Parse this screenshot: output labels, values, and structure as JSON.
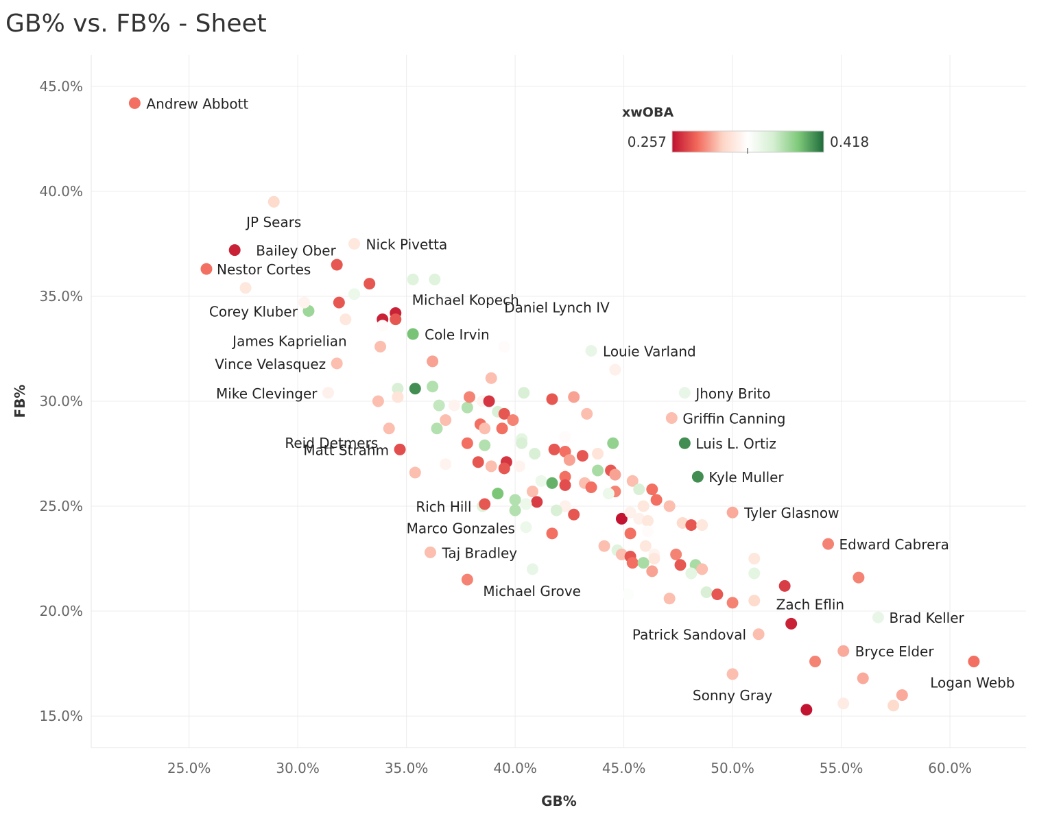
{
  "page": {
    "title": "GB% vs. FB% - Sheet"
  },
  "chart_data": {
    "type": "scatter",
    "title": "GB% vs. FB% - Sheet",
    "xlabel": "GB%",
    "ylabel": "FB%",
    "xlim": [
      20.5,
      63.5
    ],
    "ylim": [
      13.5,
      46.5
    ],
    "x_ticks": [
      "25.0%",
      "30.0%",
      "35.0%",
      "40.0%",
      "45.0%",
      "50.0%",
      "55.0%",
      "60.0%"
    ],
    "x_tick_values": [
      25,
      30,
      35,
      40,
      45,
      50,
      55,
      60
    ],
    "y_ticks": [
      "15.0%",
      "20.0%",
      "25.0%",
      "30.0%",
      "35.0%",
      "40.0%",
      "45.0%"
    ],
    "y_tick_values": [
      15,
      20,
      25,
      30,
      35,
      40,
      45
    ],
    "grid": true,
    "color_legend": {
      "title": "xwOBA",
      "min_label": "0.257",
      "max_label": "0.418",
      "min": 0.257,
      "max": 0.418,
      "colors": [
        "#c0112f",
        "#f26a5c",
        "#fdd5c5",
        "#ffffff",
        "#d5efd2",
        "#7fc97a",
        "#1e6b3b"
      ],
      "placement": "top-right"
    },
    "points": [
      {
        "x": 22.5,
        "y": 44.2,
        "c": 0.285,
        "label": "Andrew Abbott"
      },
      {
        "x": 28.9,
        "y": 39.5,
        "c": 0.315,
        "label": "JP Sears"
      },
      {
        "x": 27.1,
        "y": 37.2,
        "c": 0.262,
        "label": "Bailey Ober"
      },
      {
        "x": 32.6,
        "y": 37.5,
        "c": 0.322,
        "label": "Nick Pivetta"
      },
      {
        "x": 25.8,
        "y": 36.3,
        "c": 0.285,
        "label": "Nestor Cortes"
      },
      {
        "x": 34.5,
        "y": 34.2,
        "c": 0.262,
        "label": "Michael Kopech"
      },
      {
        "x": 30.5,
        "y": 34.3,
        "c": 0.382,
        "label": "Corey Kluber"
      },
      {
        "x": 33.9,
        "y": 33.9,
        "c": 0.262,
        "label": "James Kaprielian"
      },
      {
        "x": 35.3,
        "y": 33.2,
        "c": 0.393,
        "label": "Cole Irvin"
      },
      {
        "x": 39.5,
        "y": 32.6,
        "c": 0.335,
        "label": "Daniel Lynch IV"
      },
      {
        "x": 43.5,
        "y": 32.4,
        "c": 0.352,
        "label": "Louie Varland"
      },
      {
        "x": 31.8,
        "y": 31.8,
        "c": 0.305,
        "label": "Vince Velasquez"
      },
      {
        "x": 31.4,
        "y": 30.4,
        "c": 0.328,
        "label": "Mike Clevinger"
      },
      {
        "x": 47.8,
        "y": 30.4,
        "c": 0.352,
        "label": "Jhony Brito"
      },
      {
        "x": 34.2,
        "y": 28.7,
        "c": 0.305,
        "label": "Reid Detmers"
      },
      {
        "x": 47.2,
        "y": 29.2,
        "c": 0.305,
        "label": "Griffin Canning"
      },
      {
        "x": 34.7,
        "y": 27.7,
        "c": 0.275,
        "label": "Matt Strahm"
      },
      {
        "x": 47.8,
        "y": 28.0,
        "c": 0.408,
        "label": "Luis L. Ortiz"
      },
      {
        "x": 48.4,
        "y": 26.4,
        "c": 0.408,
        "label": "Kyle Muller"
      },
      {
        "x": 38.5,
        "y": 25.0,
        "c": 0.36,
        "label": "Rich Hill"
      },
      {
        "x": 50.0,
        "y": 24.7,
        "c": 0.3,
        "label": "Tyler Glasnow"
      },
      {
        "x": 40.5,
        "y": 24.0,
        "c": 0.35,
        "label": "Marco Gonzales"
      },
      {
        "x": 36.1,
        "y": 22.8,
        "c": 0.305,
        "label": "Taj Bradley"
      },
      {
        "x": 54.4,
        "y": 23.2,
        "c": 0.29,
        "label": "Edward Cabrera"
      },
      {
        "x": 37.8,
        "y": 21.5,
        "c": 0.29,
        "label": "Michael Grove"
      },
      {
        "x": 52.7,
        "y": 19.4,
        "c": 0.262,
        "label": "Zach Eflin"
      },
      {
        "x": 56.7,
        "y": 19.7,
        "c": 0.352,
        "label": "Brad Keller"
      },
      {
        "x": 51.2,
        "y": 18.9,
        "c": 0.305,
        "label": "Patrick Sandoval"
      },
      {
        "x": 55.1,
        "y": 18.1,
        "c": 0.3,
        "label": "Bryce Elder"
      },
      {
        "x": 50.0,
        "y": 17.0,
        "c": 0.305,
        "label": "Sonny Gray"
      },
      {
        "x": 61.1,
        "y": 17.6,
        "c": 0.285,
        "label": "Logan Webb"
      },
      {
        "x": 53.4,
        "y": 15.3,
        "c": 0.258,
        "label": ""
      },
      {
        "x": 27.6,
        "y": 35.4,
        "c": 0.322,
        "label": ""
      },
      {
        "x": 30.3,
        "y": 34.7,
        "c": 0.33,
        "label": ""
      },
      {
        "x": 31.8,
        "y": 36.5,
        "c": 0.278,
        "label": ""
      },
      {
        "x": 33.3,
        "y": 35.6,
        "c": 0.278,
        "label": ""
      },
      {
        "x": 32.6,
        "y": 35.1,
        "c": 0.35,
        "label": ""
      },
      {
        "x": 31.9,
        "y": 34.7,
        "c": 0.278,
        "label": ""
      },
      {
        "x": 32.2,
        "y": 33.9,
        "c": 0.322,
        "label": ""
      },
      {
        "x": 34.5,
        "y": 33.9,
        "c": 0.278,
        "label": ""
      },
      {
        "x": 33.9,
        "y": 33.6,
        "c": 0.335,
        "label": ""
      },
      {
        "x": 33.8,
        "y": 32.6,
        "c": 0.305,
        "label": ""
      },
      {
        "x": 35.3,
        "y": 35.8,
        "c": 0.358,
        "label": ""
      },
      {
        "x": 36.3,
        "y": 35.8,
        "c": 0.358,
        "label": ""
      },
      {
        "x": 36.2,
        "y": 31.9,
        "c": 0.298,
        "label": ""
      },
      {
        "x": 38.9,
        "y": 31.1,
        "c": 0.305,
        "label": ""
      },
      {
        "x": 44.6,
        "y": 31.5,
        "c": 0.328,
        "label": ""
      },
      {
        "x": 34.6,
        "y": 30.6,
        "c": 0.362,
        "label": ""
      },
      {
        "x": 35.4,
        "y": 30.6,
        "c": 0.408,
        "label": ""
      },
      {
        "x": 36.2,
        "y": 30.7,
        "c": 0.375,
        "label": ""
      },
      {
        "x": 33.7,
        "y": 30.0,
        "c": 0.305,
        "label": ""
      },
      {
        "x": 34.6,
        "y": 30.2,
        "c": 0.32,
        "label": ""
      },
      {
        "x": 36.5,
        "y": 29.8,
        "c": 0.37,
        "label": ""
      },
      {
        "x": 37.2,
        "y": 29.8,
        "c": 0.33,
        "label": ""
      },
      {
        "x": 37.8,
        "y": 29.7,
        "c": 0.375,
        "label": ""
      },
      {
        "x": 37.9,
        "y": 30.2,
        "c": 0.29,
        "label": ""
      },
      {
        "x": 38.5,
        "y": 30.0,
        "c": 0.33,
        "label": ""
      },
      {
        "x": 38.8,
        "y": 30.0,
        "c": 0.268,
        "label": ""
      },
      {
        "x": 40.4,
        "y": 30.4,
        "c": 0.362,
        "label": ""
      },
      {
        "x": 41.7,
        "y": 30.1,
        "c": 0.278,
        "label": ""
      },
      {
        "x": 42.7,
        "y": 30.2,
        "c": 0.298,
        "label": ""
      },
      {
        "x": 39.2,
        "y": 29.5,
        "c": 0.362,
        "label": ""
      },
      {
        "x": 39.5,
        "y": 29.4,
        "c": 0.278,
        "label": ""
      },
      {
        "x": 39.9,
        "y": 29.1,
        "c": 0.29,
        "label": ""
      },
      {
        "x": 43.3,
        "y": 29.4,
        "c": 0.305,
        "label": ""
      },
      {
        "x": 36.8,
        "y": 29.1,
        "c": 0.305,
        "label": ""
      },
      {
        "x": 38.4,
        "y": 28.9,
        "c": 0.285,
        "label": ""
      },
      {
        "x": 38.6,
        "y": 28.7,
        "c": 0.305,
        "label": ""
      },
      {
        "x": 39.4,
        "y": 28.7,
        "c": 0.285,
        "label": ""
      },
      {
        "x": 36.4,
        "y": 28.7,
        "c": 0.375,
        "label": ""
      },
      {
        "x": 40.3,
        "y": 28.2,
        "c": 0.355,
        "label": ""
      },
      {
        "x": 42.3,
        "y": 28.3,
        "c": 0.335,
        "label": ""
      },
      {
        "x": 37.8,
        "y": 28.0,
        "c": 0.285,
        "label": ""
      },
      {
        "x": 38.6,
        "y": 27.9,
        "c": 0.375,
        "label": ""
      },
      {
        "x": 40.3,
        "y": 28.0,
        "c": 0.362,
        "label": ""
      },
      {
        "x": 41.8,
        "y": 27.7,
        "c": 0.278,
        "label": ""
      },
      {
        "x": 42.3,
        "y": 27.6,
        "c": 0.285,
        "label": ""
      },
      {
        "x": 44.5,
        "y": 28.0,
        "c": 0.385,
        "label": ""
      },
      {
        "x": 40.9,
        "y": 27.5,
        "c": 0.362,
        "label": ""
      },
      {
        "x": 42.5,
        "y": 27.2,
        "c": 0.298,
        "label": ""
      },
      {
        "x": 43.1,
        "y": 27.4,
        "c": 0.278,
        "label": ""
      },
      {
        "x": 43.8,
        "y": 27.5,
        "c": 0.32,
        "label": ""
      },
      {
        "x": 36.8,
        "y": 27.0,
        "c": 0.33,
        "label": ""
      },
      {
        "x": 38.3,
        "y": 27.1,
        "c": 0.278,
        "label": ""
      },
      {
        "x": 38.9,
        "y": 26.9,
        "c": 0.305,
        "label": ""
      },
      {
        "x": 39.6,
        "y": 27.1,
        "c": 0.268,
        "label": ""
      },
      {
        "x": 39.5,
        "y": 26.8,
        "c": 0.278,
        "label": ""
      },
      {
        "x": 40.2,
        "y": 26.9,
        "c": 0.33,
        "label": ""
      },
      {
        "x": 35.4,
        "y": 26.6,
        "c": 0.305,
        "label": ""
      },
      {
        "x": 42.3,
        "y": 26.4,
        "c": 0.285,
        "label": ""
      },
      {
        "x": 43.8,
        "y": 26.7,
        "c": 0.378,
        "label": ""
      },
      {
        "x": 44.4,
        "y": 26.7,
        "c": 0.278,
        "label": ""
      },
      {
        "x": 44.6,
        "y": 26.5,
        "c": 0.298,
        "label": ""
      },
      {
        "x": 41.2,
        "y": 26.2,
        "c": 0.35,
        "label": ""
      },
      {
        "x": 41.7,
        "y": 26.1,
        "c": 0.398,
        "label": ""
      },
      {
        "x": 42.3,
        "y": 26.0,
        "c": 0.275,
        "label": ""
      },
      {
        "x": 43.2,
        "y": 26.1,
        "c": 0.305,
        "label": ""
      },
      {
        "x": 43.5,
        "y": 25.9,
        "c": 0.285,
        "label": ""
      },
      {
        "x": 40.8,
        "y": 25.7,
        "c": 0.305,
        "label": ""
      },
      {
        "x": 44.6,
        "y": 25.7,
        "c": 0.29,
        "label": ""
      },
      {
        "x": 44.3,
        "y": 25.6,
        "c": 0.35,
        "label": ""
      },
      {
        "x": 45.4,
        "y": 26.2,
        "c": 0.305,
        "label": ""
      },
      {
        "x": 45.7,
        "y": 25.8,
        "c": 0.362,
        "label": ""
      },
      {
        "x": 46.3,
        "y": 25.8,
        "c": 0.285,
        "label": ""
      },
      {
        "x": 39.2,
        "y": 25.6,
        "c": 0.392,
        "label": ""
      },
      {
        "x": 40.0,
        "y": 25.3,
        "c": 0.375,
        "label": ""
      },
      {
        "x": 38.6,
        "y": 25.1,
        "c": 0.278,
        "label": ""
      },
      {
        "x": 41.0,
        "y": 25.2,
        "c": 0.27,
        "label": ""
      },
      {
        "x": 40.5,
        "y": 25.1,
        "c": 0.35,
        "label": ""
      },
      {
        "x": 42.3,
        "y": 25.0,
        "c": 0.328,
        "label": ""
      },
      {
        "x": 41.9,
        "y": 24.8,
        "c": 0.362,
        "label": ""
      },
      {
        "x": 42.7,
        "y": 24.6,
        "c": 0.278,
        "label": ""
      },
      {
        "x": 40.0,
        "y": 24.8,
        "c": 0.375,
        "label": ""
      },
      {
        "x": 45.9,
        "y": 25.0,
        "c": 0.322,
        "label": ""
      },
      {
        "x": 46.5,
        "y": 25.3,
        "c": 0.285,
        "label": ""
      },
      {
        "x": 47.1,
        "y": 25.0,
        "c": 0.305,
        "label": ""
      },
      {
        "x": 44.9,
        "y": 24.4,
        "c": 0.258,
        "label": ""
      },
      {
        "x": 45.3,
        "y": 24.7,
        "c": 0.328,
        "label": ""
      },
      {
        "x": 45.7,
        "y": 24.4,
        "c": 0.328,
        "label": ""
      },
      {
        "x": 46.1,
        "y": 24.3,
        "c": 0.322,
        "label": ""
      },
      {
        "x": 47.7,
        "y": 24.2,
        "c": 0.315,
        "label": ""
      },
      {
        "x": 48.1,
        "y": 24.1,
        "c": 0.278,
        "label": ""
      },
      {
        "x": 48.6,
        "y": 24.1,
        "c": 0.322,
        "label": ""
      },
      {
        "x": 41.7,
        "y": 23.7,
        "c": 0.285,
        "label": ""
      },
      {
        "x": 45.3,
        "y": 23.7,
        "c": 0.285,
        "label": ""
      },
      {
        "x": 46.1,
        "y": 23.8,
        "c": 0.335,
        "label": ""
      },
      {
        "x": 44.1,
        "y": 23.1,
        "c": 0.305,
        "label": ""
      },
      {
        "x": 44.7,
        "y": 22.9,
        "c": 0.358,
        "label": ""
      },
      {
        "x": 44.9,
        "y": 22.7,
        "c": 0.305,
        "label": ""
      },
      {
        "x": 46.0,
        "y": 23.1,
        "c": 0.322,
        "label": ""
      },
      {
        "x": 45.3,
        "y": 22.6,
        "c": 0.278,
        "label": ""
      },
      {
        "x": 45.4,
        "y": 22.3,
        "c": 0.285,
        "label": ""
      },
      {
        "x": 45.9,
        "y": 22.3,
        "c": 0.378,
        "label": ""
      },
      {
        "x": 46.4,
        "y": 22.7,
        "c": 0.33,
        "label": ""
      },
      {
        "x": 46.4,
        "y": 22.5,
        "c": 0.322,
        "label": ""
      },
      {
        "x": 47.4,
        "y": 22.7,
        "c": 0.29,
        "label": ""
      },
      {
        "x": 47.6,
        "y": 22.2,
        "c": 0.278,
        "label": ""
      },
      {
        "x": 48.3,
        "y": 22.2,
        "c": 0.378,
        "label": ""
      },
      {
        "x": 48.6,
        "y": 22.0,
        "c": 0.305,
        "label": ""
      },
      {
        "x": 46.3,
        "y": 21.9,
        "c": 0.298,
        "label": ""
      },
      {
        "x": 48.1,
        "y": 21.8,
        "c": 0.355,
        "label": ""
      },
      {
        "x": 40.8,
        "y": 22.0,
        "c": 0.352,
        "label": ""
      },
      {
        "x": 51.0,
        "y": 22.5,
        "c": 0.322,
        "label": ""
      },
      {
        "x": 51.0,
        "y": 21.8,
        "c": 0.355,
        "label": ""
      },
      {
        "x": 55.8,
        "y": 21.6,
        "c": 0.29,
        "label": ""
      },
      {
        "x": 52.4,
        "y": 21.2,
        "c": 0.27,
        "label": ""
      },
      {
        "x": 48.8,
        "y": 20.9,
        "c": 0.362,
        "label": ""
      },
      {
        "x": 49.3,
        "y": 20.8,
        "c": 0.278,
        "label": ""
      },
      {
        "x": 45.2,
        "y": 20.8,
        "c": 0.34,
        "label": ""
      },
      {
        "x": 47.1,
        "y": 20.6,
        "c": 0.305,
        "label": ""
      },
      {
        "x": 50.0,
        "y": 20.4,
        "c": 0.29,
        "label": ""
      },
      {
        "x": 51.0,
        "y": 20.5,
        "c": 0.315,
        "label": ""
      },
      {
        "x": 53.8,
        "y": 17.6,
        "c": 0.29,
        "label": ""
      },
      {
        "x": 56.0,
        "y": 16.8,
        "c": 0.3,
        "label": ""
      },
      {
        "x": 57.8,
        "y": 16.0,
        "c": 0.3,
        "label": ""
      },
      {
        "x": 57.4,
        "y": 15.5,
        "c": 0.315,
        "label": ""
      },
      {
        "x": 55.1,
        "y": 15.6,
        "c": 0.325,
        "label": ""
      }
    ]
  }
}
